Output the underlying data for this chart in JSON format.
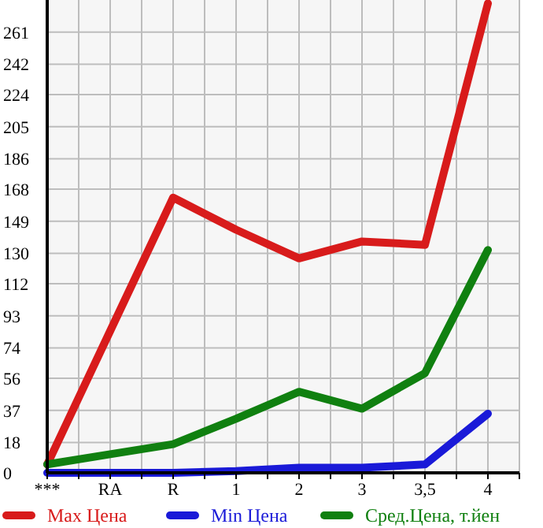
{
  "chart_data": {
    "type": "line",
    "categories": [
      "***",
      "RA",
      "R",
      "1",
      "2",
      "3",
      "3,5",
      "4"
    ],
    "series": [
      {
        "name": "Max Цена",
        "color": "#d81b1b",
        "values": [
          5,
          84,
          163,
          144,
          127,
          137,
          135,
          278
        ]
      },
      {
        "name": "Min Цена",
        "color": "#1a1ad8",
        "values": [
          0,
          0,
          0,
          1,
          3,
          3,
          5,
          35
        ]
      },
      {
        "name": "Сред.Цена, т.йен",
        "color": "#108010",
        "values": [
          5,
          11,
          17,
          32,
          48,
          38,
          59,
          132
        ]
      }
    ],
    "ylim": [
      0,
      280
    ],
    "yticks": [
      0,
      18,
      37,
      56,
      74,
      93,
      112,
      130,
      149,
      168,
      186,
      205,
      224,
      242,
      261
    ],
    "grid": true,
    "legend": "bottom",
    "marker": "none",
    "line_style": "solid"
  }
}
